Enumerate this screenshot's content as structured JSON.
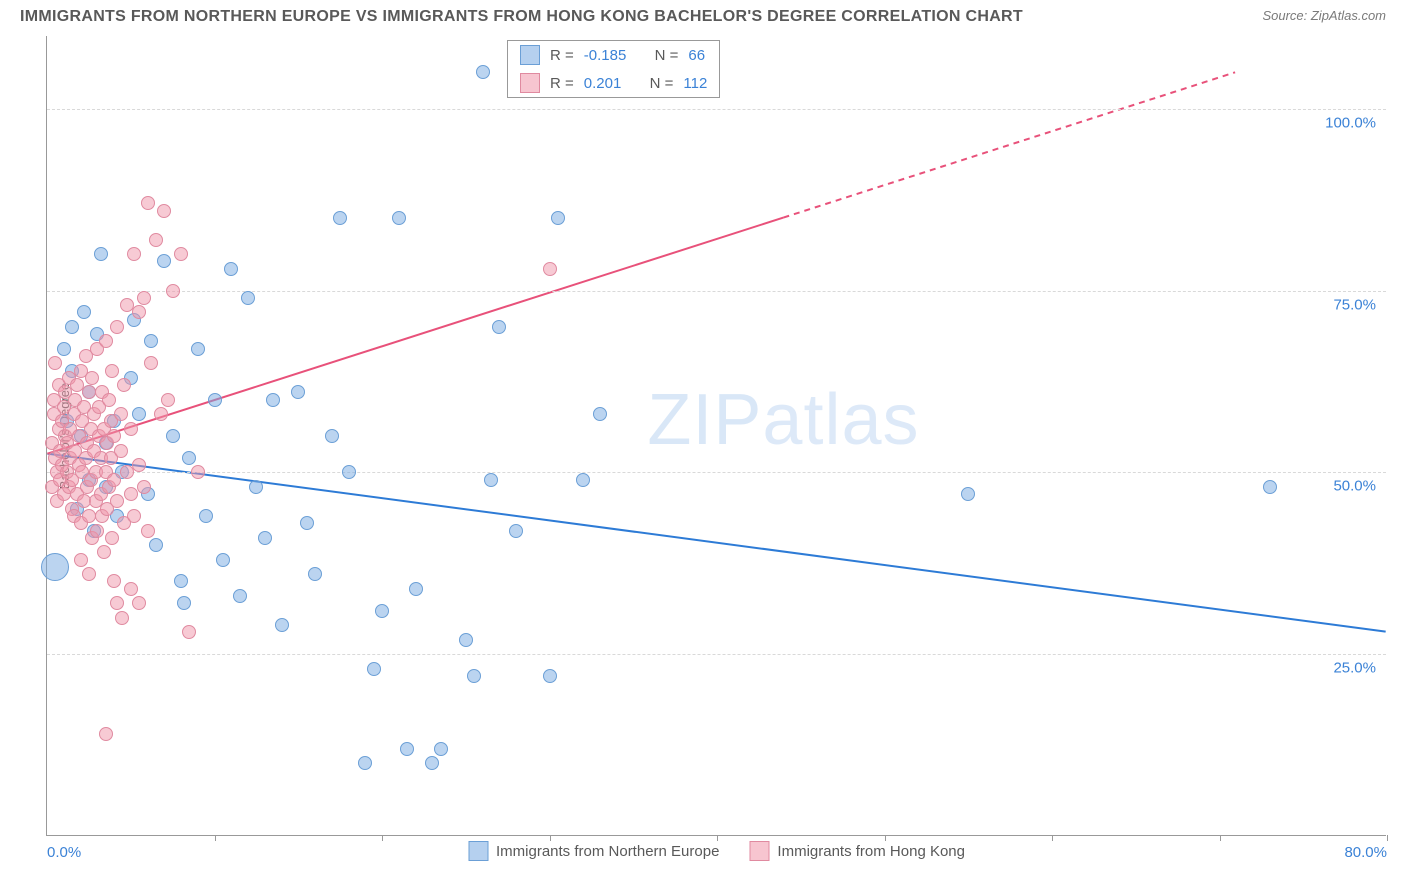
{
  "title": "IMMIGRANTS FROM NORTHERN EUROPE VS IMMIGRANTS FROM HONG KONG BACHELOR'S DEGREE CORRELATION CHART",
  "source": "Source: ZipAtlas.com",
  "watermark": "ZIPatlas",
  "chart": {
    "type": "scatter",
    "ylabel": "Bachelor's Degree",
    "xlim": [
      0,
      80
    ],
    "ylim": [
      0,
      110
    ],
    "x_ticks": [
      0,
      10,
      20,
      30,
      40,
      50,
      60,
      70,
      80
    ],
    "x_tick_labels": {
      "0": "0.0%",
      "80": "80.0%"
    },
    "y_ticks": [
      25,
      50,
      75,
      100
    ],
    "y_tick_labels": {
      "25": "25.0%",
      "50": "50.0%",
      "75": "75.0%",
      "100": "100.0%"
    },
    "background_color": "#ffffff",
    "grid_color": "#d9d9d9",
    "axis_color": "#999999",
    "title_color": "#595959",
    "tick_label_color": "#3b82d6",
    "title_fontsize": 16,
    "label_fontsize": 13,
    "tick_fontsize": 15,
    "series": [
      {
        "name": "Immigrants from Northern Europe",
        "color_fill": "rgba(120,170,225,0.5)",
        "color_stroke": "#6b9fd6",
        "trend_color": "#2d7bd6",
        "trend_width": 2,
        "r_value": "-0.185",
        "n_value": "66",
        "trend": {
          "x1": 0,
          "y1": 52.5,
          "x2": 80,
          "y2": 28
        },
        "marker_size": 14,
        "points": [
          [
            0.5,
            37,
            28
          ],
          [
            1,
            67
          ],
          [
            1.2,
            57
          ],
          [
            1.5,
            64
          ],
          [
            1.5,
            70
          ],
          [
            1.8,
            45
          ],
          [
            2,
            55
          ],
          [
            2.2,
            72
          ],
          [
            2.5,
            49
          ],
          [
            2.5,
            61
          ],
          [
            2.8,
            42
          ],
          [
            3,
            69
          ],
          [
            3.2,
            80
          ],
          [
            3.5,
            54
          ],
          [
            3.5,
            48
          ],
          [
            4,
            57
          ],
          [
            4.2,
            44
          ],
          [
            4.5,
            50
          ],
          [
            5,
            63
          ],
          [
            5.2,
            71
          ],
          [
            5.5,
            58
          ],
          [
            6,
            47
          ],
          [
            6.2,
            68
          ],
          [
            6.5,
            40
          ],
          [
            7,
            79
          ],
          [
            7.5,
            55
          ],
          [
            8,
            35
          ],
          [
            8.2,
            32
          ],
          [
            8.5,
            52
          ],
          [
            9,
            67
          ],
          [
            9.5,
            44
          ],
          [
            10,
            60
          ],
          [
            10.5,
            38
          ],
          [
            11,
            78
          ],
          [
            11.5,
            33
          ],
          [
            12,
            74
          ],
          [
            12.5,
            48
          ],
          [
            13,
            41
          ],
          [
            13.5,
            60
          ],
          [
            14,
            29
          ],
          [
            15,
            61
          ],
          [
            15.5,
            43
          ],
          [
            16,
            36
          ],
          [
            17,
            55
          ],
          [
            17.5,
            85
          ],
          [
            18,
            50
          ],
          [
            19,
            10
          ],
          [
            19.5,
            23
          ],
          [
            20,
            31
          ],
          [
            21,
            85
          ],
          [
            21.5,
            12
          ],
          [
            22,
            34
          ],
          [
            23,
            10
          ],
          [
            23.5,
            12
          ],
          [
            25,
            27
          ],
          [
            25.5,
            22
          ],
          [
            26,
            105
          ],
          [
            26.5,
            49
          ],
          [
            27,
            70
          ],
          [
            28,
            42
          ],
          [
            30,
            22
          ],
          [
            30.5,
            85
          ],
          [
            32,
            49
          ],
          [
            33,
            58
          ],
          [
            55,
            47
          ],
          [
            73,
            48
          ]
        ]
      },
      {
        "name": "Immigrants from Hong Kong",
        "color_fill": "rgba(240,150,170,0.5)",
        "color_stroke": "#e08aa0",
        "trend_color": "#e8517a",
        "trend_width": 2,
        "r_value": "0.201",
        "n_value": "112",
        "trend": {
          "x1": 0,
          "y1": 52.5,
          "x2": 44,
          "y2": 85
        },
        "trend_dashed_ext": {
          "x1": 44,
          "y1": 85,
          "x2": 71,
          "y2": 105
        },
        "marker_size": 14,
        "points": [
          [
            0.3,
            54
          ],
          [
            0.3,
            48
          ],
          [
            0.4,
            60
          ],
          [
            0.4,
            58
          ],
          [
            0.5,
            52
          ],
          [
            0.5,
            65
          ],
          [
            0.6,
            50
          ],
          [
            0.6,
            46
          ],
          [
            0.7,
            56
          ],
          [
            0.7,
            62
          ],
          [
            0.8,
            53
          ],
          [
            0.8,
            49
          ],
          [
            0.9,
            57
          ],
          [
            0.9,
            51
          ],
          [
            1.0,
            59
          ],
          [
            1.0,
            47
          ],
          [
            1.1,
            55
          ],
          [
            1.1,
            61
          ],
          [
            1.2,
            50
          ],
          [
            1.2,
            54
          ],
          [
            1.3,
            48
          ],
          [
            1.3,
            63
          ],
          [
            1.4,
            52
          ],
          [
            1.4,
            56
          ],
          [
            1.5,
            45
          ],
          [
            1.5,
            49
          ],
          [
            1.6,
            58
          ],
          [
            1.6,
            44
          ],
          [
            1.7,
            53
          ],
          [
            1.7,
            60
          ],
          [
            1.8,
            47
          ],
          [
            1.8,
            62
          ],
          [
            1.9,
            51
          ],
          [
            1.9,
            55
          ],
          [
            2.0,
            64
          ],
          [
            2.0,
            43
          ],
          [
            2.1,
            57
          ],
          [
            2.1,
            50
          ],
          [
            2.2,
            46
          ],
          [
            2.2,
            59
          ],
          [
            2.3,
            52
          ],
          [
            2.3,
            66
          ],
          [
            2.4,
            48
          ],
          [
            2.4,
            54
          ],
          [
            2.5,
            61
          ],
          [
            2.5,
            44
          ],
          [
            2.6,
            56
          ],
          [
            2.6,
            49
          ],
          [
            2.7,
            63
          ],
          [
            2.7,
            41
          ],
          [
            2.8,
            53
          ],
          [
            2.8,
            58
          ],
          [
            2.9,
            46
          ],
          [
            2.9,
            50
          ],
          [
            3.0,
            67
          ],
          [
            3.0,
            42
          ],
          [
            3.1,
            55
          ],
          [
            3.1,
            59
          ],
          [
            3.2,
            47
          ],
          [
            3.2,
            52
          ],
          [
            3.3,
            61
          ],
          [
            3.3,
            44
          ],
          [
            3.4,
            56
          ],
          [
            3.4,
            39
          ],
          [
            3.5,
            68
          ],
          [
            3.5,
            50
          ],
          [
            3.6,
            54
          ],
          [
            3.6,
            45
          ],
          [
            3.7,
            60
          ],
          [
            3.7,
            48
          ],
          [
            3.8,
            52
          ],
          [
            3.8,
            57
          ],
          [
            3.9,
            41
          ],
          [
            3.9,
            64
          ],
          [
            4.0,
            49
          ],
          [
            4.0,
            55
          ],
          [
            4.2,
            70
          ],
          [
            4.2,
            46
          ],
          [
            4.4,
            53
          ],
          [
            4.4,
            58
          ],
          [
            4.6,
            43
          ],
          [
            4.6,
            62
          ],
          [
            4.8,
            50
          ],
          [
            4.8,
            73
          ],
          [
            5.0,
            47
          ],
          [
            5.0,
            56
          ],
          [
            5.2,
            80
          ],
          [
            5.2,
            44
          ],
          [
            5.5,
            72
          ],
          [
            5.5,
            51
          ],
          [
            5.8,
            74
          ],
          [
            5.8,
            48
          ],
          [
            6.0,
            87
          ],
          [
            6.0,
            42
          ],
          [
            6.2,
            65
          ],
          [
            6.5,
            82
          ],
          [
            6.8,
            58
          ],
          [
            7.0,
            86
          ],
          [
            7.2,
            60
          ],
          [
            7.5,
            75
          ],
          [
            8.0,
            80
          ],
          [
            8.5,
            28
          ],
          [
            9.0,
            50
          ],
          [
            3.5,
            14
          ],
          [
            4.0,
            35
          ],
          [
            4.2,
            32
          ],
          [
            4.5,
            30
          ],
          [
            2.0,
            38
          ],
          [
            2.5,
            36
          ],
          [
            5.0,
            34
          ],
          [
            5.5,
            32
          ],
          [
            30,
            78
          ]
        ]
      }
    ],
    "legend_box_label_r": "R =",
    "legend_box_label_n": "N ="
  }
}
